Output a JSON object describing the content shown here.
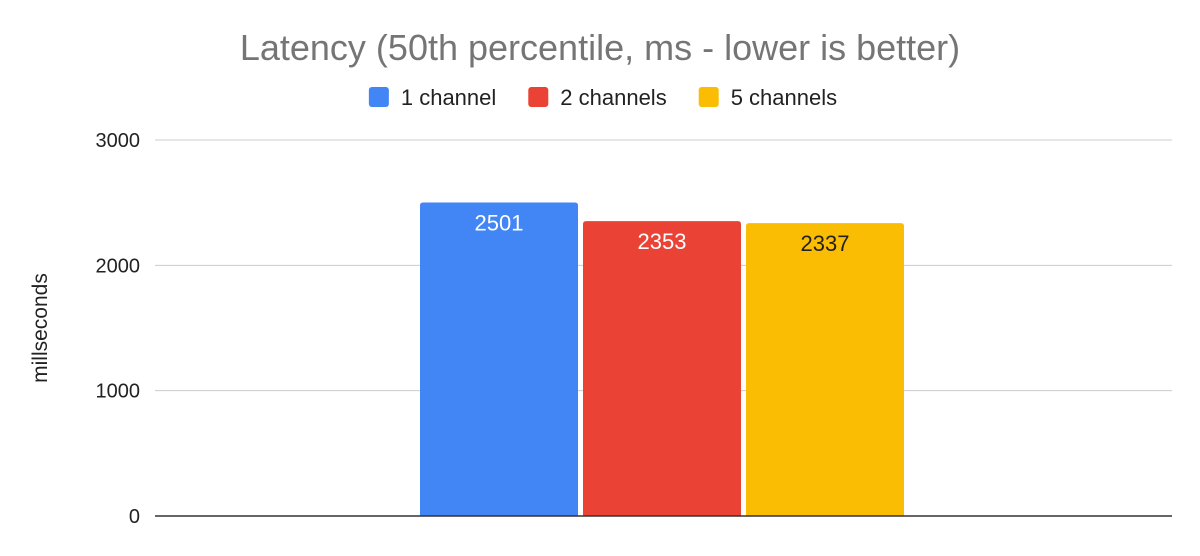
{
  "chart_data": {
    "type": "bar",
    "title": "Latency (50th percentile, ms - lower is better)",
    "xlabel": "",
    "ylabel": "millseconds",
    "ylim": [
      0,
      3000
    ],
    "yticks": [
      0,
      1000,
      2000,
      3000
    ],
    "grid": true,
    "legend_position": "top",
    "categories": [
      ""
    ],
    "series": [
      {
        "name": "1 channel",
        "values": [
          2501
        ],
        "color": "#4285F4",
        "label_color": "#ffffff"
      },
      {
        "name": "2 channels",
        "values": [
          2353
        ],
        "color": "#EA4335",
        "label_color": "#ffffff"
      },
      {
        "name": "5 channels",
        "values": [
          2337
        ],
        "color": "#FBBC04",
        "label_color": "#222222"
      }
    ],
    "gridline_color": "#cccccc",
    "axis_color": "#333333"
  }
}
